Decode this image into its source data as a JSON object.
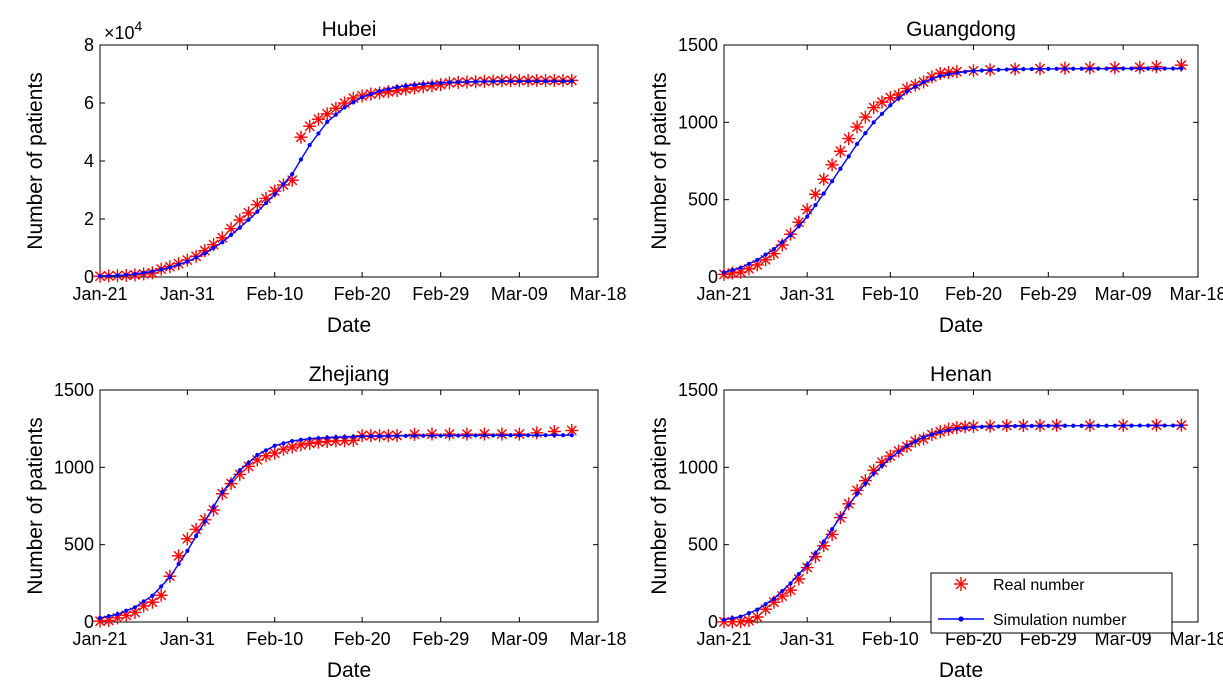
{
  "colors": {
    "real": "#ff0000",
    "sim": "#0000ff",
    "axis": "#000000"
  },
  "legend": {
    "real_label": "Real number",
    "sim_label": "Simulation number",
    "placement": "bottom-right of Henan panel"
  },
  "chart_data": [
    {
      "type": "line",
      "title": "Hubei",
      "xlabel": "Date",
      "ylabel": "Number of patients",
      "x_ticks": [
        "Jan-21",
        "Jan-31",
        "Feb-10",
        "Feb-20",
        "Feb-29",
        "Mar-09",
        "Mar-18"
      ],
      "x_tick_day": [
        0,
        10,
        20,
        30,
        39,
        48,
        57
      ],
      "y_ticks": [
        "0",
        "2",
        "4",
        "6",
        "8"
      ],
      "y_scale_label": "×10",
      "y_scale_exp": "4",
      "ylim": [
        0,
        80000
      ],
      "xlim_days": [
        0,
        57
      ],
      "last_day": 54,
      "series": [
        {
          "name": "Real number",
          "marker": "asterisk",
          "values": [
            270,
            375,
            444,
            549,
            729,
            1052,
            1423,
            2714,
            3554,
            4586,
            5806,
            7153,
            9074,
            11177,
            13522,
            16678,
            19665,
            22112,
            24953,
            27100,
            29631,
            31728,
            33366,
            48206,
            51986,
            54406,
            56249,
            58182,
            59989,
            61682,
            62457,
            63088,
            63454,
            63889,
            64287,
            64786,
            65187,
            65596,
            65914,
            66337,
            66907,
            67103,
            67217,
            67332,
            67466,
            67592,
            67666,
            67707,
            67743,
            67760,
            67773,
            67781,
            67786,
            67790,
            67794
          ]
        },
        {
          "name": "Simulation number",
          "marker": "dot-line",
          "points": [
            [
              0,
              300
            ],
            [
              2,
              500
            ],
            [
              4,
              1000
            ],
            [
              6,
              1900
            ],
            [
              8,
              3300
            ],
            [
              10,
              5300
            ],
            [
              12,
              8100
            ],
            [
              14,
              12000
            ],
            [
              16,
              17000
            ],
            [
              18,
              22500
            ],
            [
              20,
              28500
            ],
            [
              22,
              35500
            ],
            [
              23,
              40500
            ],
            [
              24,
              45500
            ],
            [
              26,
              53500
            ],
            [
              28,
              58500
            ],
            [
              30,
              62000
            ],
            [
              32,
              64100
            ],
            [
              34,
              65500
            ],
            [
              36,
              66300
            ],
            [
              38,
              66800
            ],
            [
              40,
              67100
            ],
            [
              42,
              67300
            ],
            [
              44,
              67400
            ],
            [
              46,
              67450
            ],
            [
              48,
              67480
            ],
            [
              50,
              67490
            ],
            [
              52,
              67500
            ],
            [
              54,
              67500
            ]
          ]
        }
      ]
    },
    {
      "type": "line",
      "title": "Guangdong",
      "xlabel": "Date",
      "ylabel": "Number of patients",
      "x_ticks": [
        "Jan-21",
        "Jan-31",
        "Feb-10",
        "Feb-20",
        "Feb-29",
        "Mar-09",
        "Mar-18"
      ],
      "x_tick_day": [
        0,
        10,
        20,
        30,
        39,
        48,
        57
      ],
      "y_ticks": [
        "0",
        "500",
        "1000",
        "1500"
      ],
      "ylim": [
        0,
        1500
      ],
      "xlim_days": [
        0,
        57
      ],
      "last_day": 55,
      "series": [
        {
          "name": "Real number",
          "marker": "asterisk",
          "points": [
            [
              0,
              17
            ],
            [
              1,
              26
            ],
            [
              2,
              32
            ],
            [
              3,
              53
            ],
            [
              4,
              78
            ],
            [
              5,
              111
            ],
            [
              6,
              151
            ],
            [
              7,
              207
            ],
            [
              8,
              277
            ],
            [
              9,
              354
            ],
            [
              10,
              436
            ],
            [
              11,
              535
            ],
            [
              12,
              632
            ],
            [
              13,
              725
            ],
            [
              14,
              813
            ],
            [
              15,
              895
            ],
            [
              16,
              970
            ],
            [
              17,
              1034
            ],
            [
              18,
              1095
            ],
            [
              19,
              1131
            ],
            [
              20,
              1159
            ],
            [
              21,
              1177
            ],
            [
              22,
              1219
            ],
            [
              23,
              1241
            ],
            [
              24,
              1261
            ],
            [
              25,
              1294
            ],
            [
              26,
              1316
            ],
            [
              27,
              1322
            ],
            [
              28,
              1328
            ],
            [
              30,
              1333
            ],
            [
              32,
              1339
            ],
            [
              35,
              1345
            ],
            [
              38,
              1347
            ],
            [
              41,
              1350
            ],
            [
              44,
              1352
            ],
            [
              47,
              1353
            ],
            [
              50,
              1356
            ],
            [
              52,
              1360
            ],
            [
              55,
              1370
            ]
          ]
        },
        {
          "name": "Simulation number",
          "marker": "dot-line",
          "points": [
            [
              0,
              30
            ],
            [
              2,
              60
            ],
            [
              4,
              110
            ],
            [
              6,
              180
            ],
            [
              8,
              270
            ],
            [
              10,
              390
            ],
            [
              12,
              540
            ],
            [
              14,
              700
            ],
            [
              16,
              860
            ],
            [
              18,
              1000
            ],
            [
              20,
              1110
            ],
            [
              22,
              1200
            ],
            [
              24,
              1260
            ],
            [
              26,
              1300
            ],
            [
              28,
              1320
            ],
            [
              30,
              1333
            ],
            [
              33,
              1340
            ],
            [
              36,
              1344
            ],
            [
              40,
              1346
            ],
            [
              44,
              1347
            ],
            [
              48,
              1348
            ],
            [
              52,
              1348
            ],
            [
              55,
              1348
            ]
          ]
        }
      ]
    },
    {
      "type": "line",
      "title": "Zhejiang",
      "xlabel": "Date",
      "ylabel": "Number of patients",
      "x_ticks": [
        "Jan-21",
        "Jan-31",
        "Feb-10",
        "Feb-20",
        "Feb-29",
        "Mar-09",
        "Mar-18"
      ],
      "x_tick_day": [
        0,
        10,
        20,
        30,
        39,
        48,
        57
      ],
      "y_ticks": [
        "0",
        "500",
        "1000",
        "1500"
      ],
      "ylim": [
        0,
        1500
      ],
      "xlim_days": [
        0,
        57
      ],
      "last_day": 54,
      "series": [
        {
          "name": "Real number",
          "marker": "asterisk",
          "points": [
            [
              0,
              5
            ],
            [
              1,
              10
            ],
            [
              2,
              27
            ],
            [
              3,
              43
            ],
            [
              4,
              62
            ],
            [
              5,
              104
            ],
            [
              6,
              128
            ],
            [
              7,
              173
            ],
            [
              8,
              296
            ],
            [
              9,
              428
            ],
            [
              10,
              538
            ],
            [
              11,
              599
            ],
            [
              12,
              661
            ],
            [
              13,
              724
            ],
            [
              14,
              829
            ],
            [
              15,
              895
            ],
            [
              16,
              954
            ],
            [
              17,
              1006
            ],
            [
              18,
              1048
            ],
            [
              19,
              1075
            ],
            [
              20,
              1092
            ],
            [
              21,
              1117
            ],
            [
              22,
              1131
            ],
            [
              23,
              1145
            ],
            [
              24,
              1155
            ],
            [
              25,
              1162
            ],
            [
              26,
              1167
            ],
            [
              27,
              1171
            ],
            [
              28,
              1172
            ],
            [
              29,
              1174
            ],
            [
              30,
              1205
            ],
            [
              31,
              1205
            ],
            [
              32,
              1205
            ],
            [
              33,
              1205
            ],
            [
              34,
              1206
            ],
            [
              36,
              1213
            ],
            [
              38,
              1215
            ],
            [
              40,
              1215
            ],
            [
              42,
              1215
            ],
            [
              44,
              1215
            ],
            [
              46,
              1215
            ],
            [
              48,
              1215
            ],
            [
              50,
              1223
            ],
            [
              52,
              1232
            ],
            [
              54,
              1238
            ]
          ]
        },
        {
          "name": "Simulation number",
          "marker": "dot-line",
          "points": [
            [
              0,
              25
            ],
            [
              2,
              50
            ],
            [
              4,
              95
            ],
            [
              6,
              170
            ],
            [
              8,
              290
            ],
            [
              10,
              460
            ],
            [
              12,
              650
            ],
            [
              14,
              840
            ],
            [
              16,
              980
            ],
            [
              18,
              1080
            ],
            [
              20,
              1140
            ],
            [
              22,
              1170
            ],
            [
              24,
              1185
            ],
            [
              26,
              1192
            ],
            [
              28,
              1197
            ],
            [
              30,
              1200
            ],
            [
              34,
              1203
            ],
            [
              38,
              1205
            ],
            [
              42,
              1206
            ],
            [
              46,
              1207
            ],
            [
              50,
              1208
            ],
            [
              54,
              1208
            ]
          ]
        }
      ]
    },
    {
      "type": "line",
      "title": "Henan",
      "xlabel": "Date",
      "ylabel": "Number of patients",
      "x_ticks": [
        "Jan-21",
        "Jan-31",
        "Feb-10",
        "Feb-20",
        "Feb-29",
        "Mar-09",
        "Mar-18"
      ],
      "x_tick_day": [
        0,
        10,
        20,
        30,
        39,
        48,
        57
      ],
      "y_ticks": [
        "0",
        "500",
        "1000",
        "1500"
      ],
      "ylim": [
        0,
        1500
      ],
      "xlim_days": [
        0,
        57
      ],
      "last_day": 55,
      "series": [
        {
          "name": "Real number",
          "marker": "asterisk",
          "points": [
            [
              0,
              1
            ],
            [
              1,
              1
            ],
            [
              2,
              1
            ],
            [
              3,
              9
            ],
            [
              4,
              32
            ],
            [
              5,
              83
            ],
            [
              6,
              128
            ],
            [
              7,
              168
            ],
            [
              8,
              206
            ],
            [
              9,
              278
            ],
            [
              10,
              352
            ],
            [
              11,
              422
            ],
            [
              12,
              493
            ],
            [
              13,
              566
            ],
            [
              14,
              675
            ],
            [
              15,
              764
            ],
            [
              16,
              851
            ],
            [
              17,
              914
            ],
            [
              18,
              981
            ],
            [
              19,
              1033
            ],
            [
              20,
              1073
            ],
            [
              21,
              1105
            ],
            [
              22,
              1135
            ],
            [
              23,
              1169
            ],
            [
              24,
              1184
            ],
            [
              25,
              1212
            ],
            [
              26,
              1231
            ],
            [
              27,
              1246
            ],
            [
              28,
              1257
            ],
            [
              29,
              1262
            ],
            [
              30,
              1265
            ],
            [
              32,
              1267
            ],
            [
              34,
              1270
            ],
            [
              36,
              1271
            ],
            [
              38,
              1271
            ],
            [
              40,
              1272
            ],
            [
              44,
              1272
            ],
            [
              48,
              1272
            ],
            [
              52,
              1273
            ],
            [
              55,
              1273
            ]
          ]
        },
        {
          "name": "Simulation number",
          "marker": "dot-line",
          "points": [
            [
              0,
              15
            ],
            [
              2,
              35
            ],
            [
              4,
              80
            ],
            [
              6,
              150
            ],
            [
              8,
              250
            ],
            [
              10,
              370
            ],
            [
              12,
              520
            ],
            [
              14,
              680
            ],
            [
              16,
              830
            ],
            [
              18,
              960
            ],
            [
              20,
              1060
            ],
            [
              22,
              1140
            ],
            [
              24,
              1195
            ],
            [
              26,
              1230
            ],
            [
              28,
              1250
            ],
            [
              30,
              1260
            ],
            [
              34,
              1266
            ],
            [
              38,
              1268
            ],
            [
              42,
              1269
            ],
            [
              46,
              1269
            ],
            [
              50,
              1270
            ],
            [
              55,
              1270
            ]
          ]
        }
      ]
    }
  ]
}
